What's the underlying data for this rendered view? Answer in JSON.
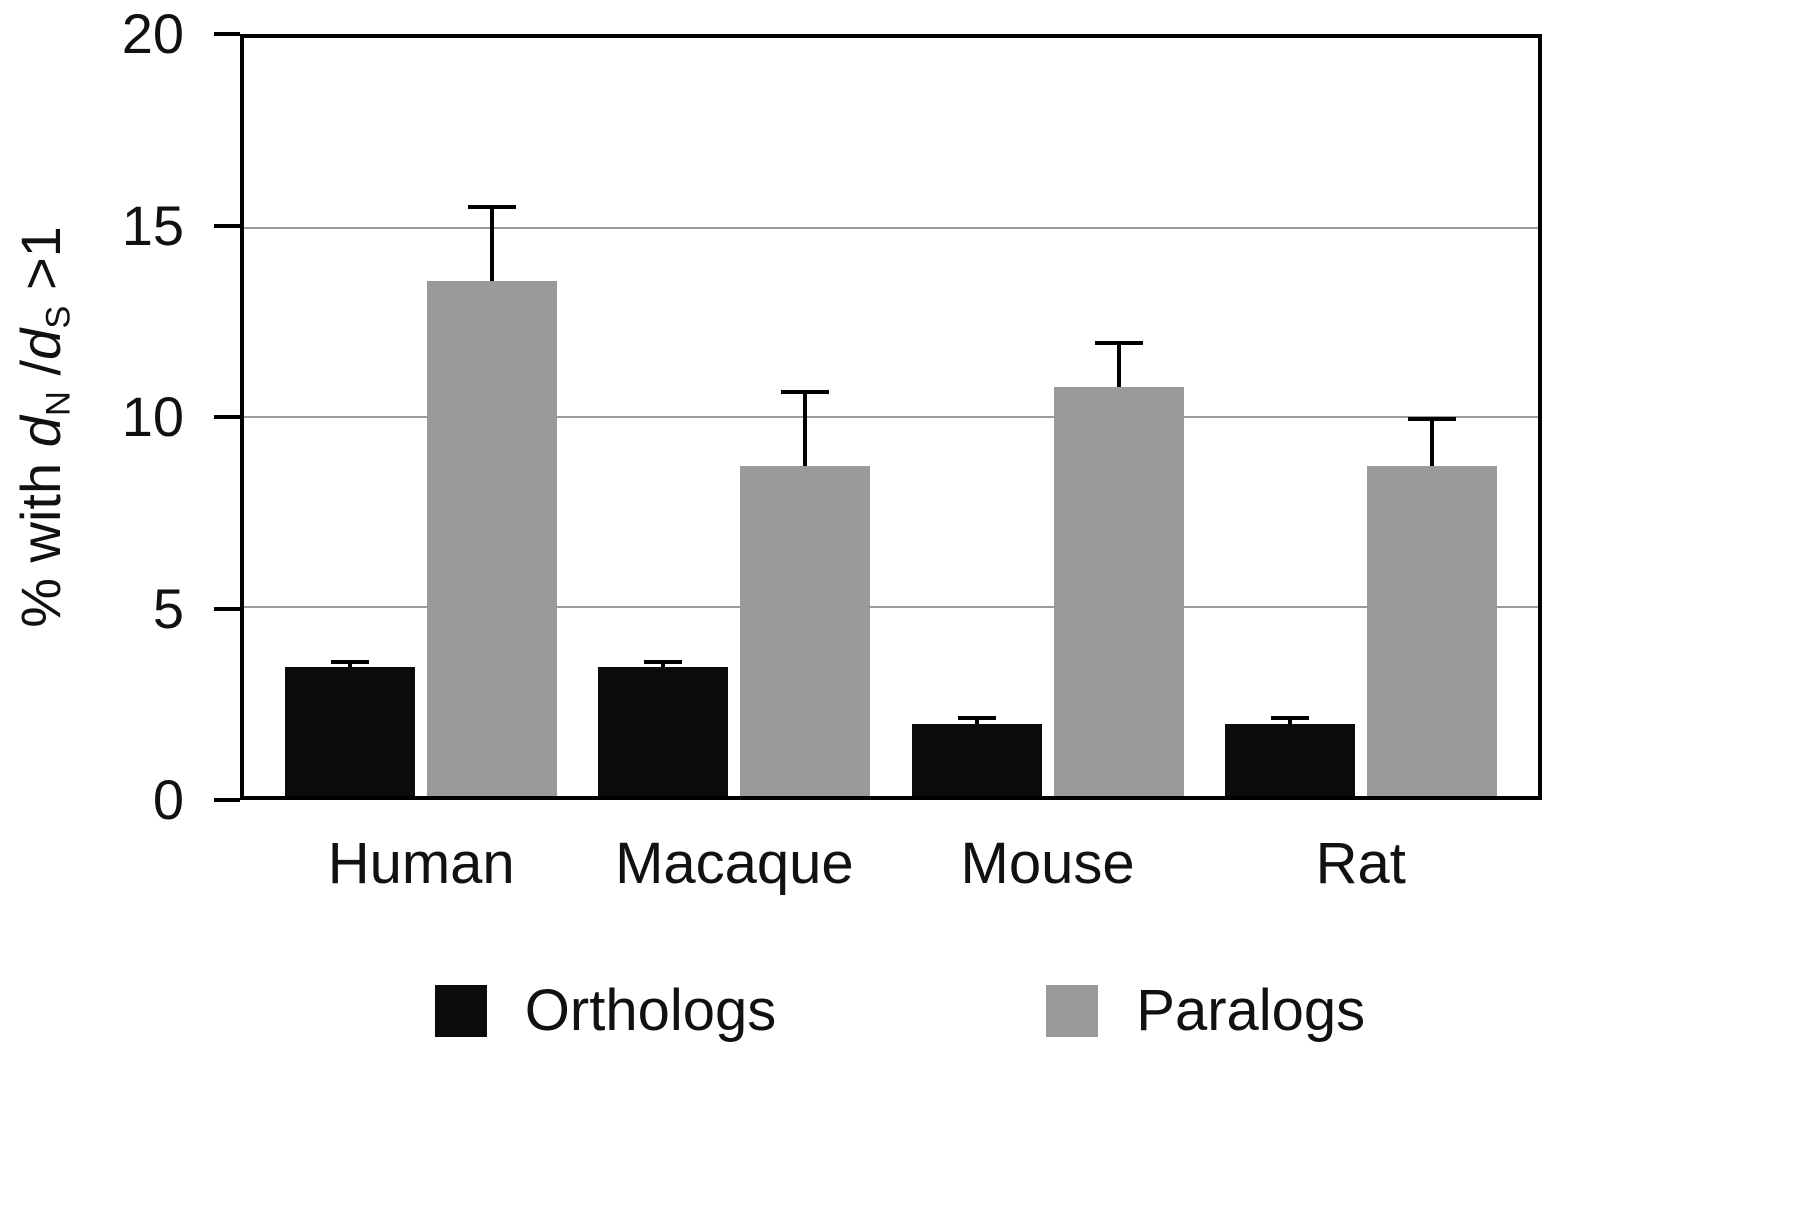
{
  "chart_data": {
    "type": "bar",
    "title": "",
    "categories": [
      "Human",
      "Macaque",
      "Mouse",
      "Rat"
    ],
    "series": [
      {
        "name": "Orthologs",
        "color": "#0b0b0b",
        "values": [
          3.4,
          3.4,
          1.9,
          1.9
        ],
        "errors_plus": [
          0.2,
          0.2,
          0.2,
          0.2
        ]
      },
      {
        "name": "Paralogs",
        "color": "#9a9a9a",
        "values": [
          13.6,
          8.7,
          10.8,
          8.7
        ],
        "errors_plus": [
          2.0,
          2.0,
          1.2,
          1.3
        ]
      }
    ],
    "ylabel": "% with dN/dS >1",
    "ylabel_segments": [
      {
        "text": "% with ",
        "style": "normal"
      },
      {
        "text": "d",
        "style": "italic"
      },
      {
        "text": "N",
        "style": "sub"
      },
      {
        "text": " /",
        "style": "normal"
      },
      {
        "text": "d",
        "style": "italic"
      },
      {
        "text": "S",
        "style": "sub"
      },
      {
        "text": " >1",
        "style": "normal"
      }
    ],
    "xlabel": "",
    "ylim": [
      0,
      20
    ],
    "yticks": [
      0,
      5,
      10,
      15,
      20
    ],
    "grid": true,
    "gridline_color": "#9b9b9b",
    "error_bar_color": "#000000",
    "legend_position": "bottom"
  }
}
